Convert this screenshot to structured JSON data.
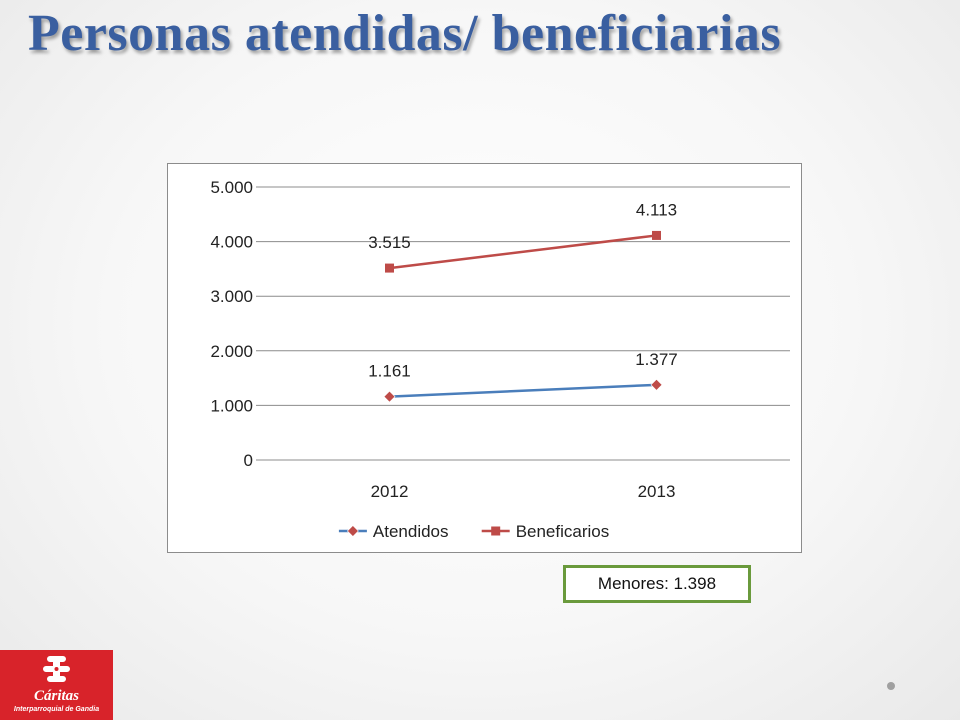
{
  "slide": {
    "title": "Personas atendidas/ beneficiarias"
  },
  "callout": {
    "text": "Menores: 1.398",
    "border_color": "#6a9a3c"
  },
  "logo": {
    "name": "Cáritas",
    "subtitle": "Interparroquial de Gandia",
    "color": "#d8232a"
  },
  "chart_data": {
    "type": "line",
    "categories": [
      "2012",
      "2013"
    ],
    "ylim": [
      0,
      5000
    ],
    "yticks": [
      0,
      1000,
      2000,
      3000,
      4000,
      5000
    ],
    "ytick_labels": [
      "0",
      "1.000",
      "2.000",
      "3.000",
      "4.000",
      "5.000"
    ],
    "grid": true,
    "legend_position": "bottom",
    "series": [
      {
        "name": "Atendidos",
        "values": [
          1161,
          1377
        ],
        "labels": [
          "1.161",
          "1.377"
        ],
        "color": "#4a7ebb",
        "marker": "diamond",
        "marker_color": "#be4b48"
      },
      {
        "name": "Beneficarios",
        "values": [
          3515,
          4113
        ],
        "labels": [
          "3.515",
          "4.113"
        ],
        "color": "#be4b48",
        "marker": "square",
        "marker_color": "#be4b48"
      }
    ]
  }
}
